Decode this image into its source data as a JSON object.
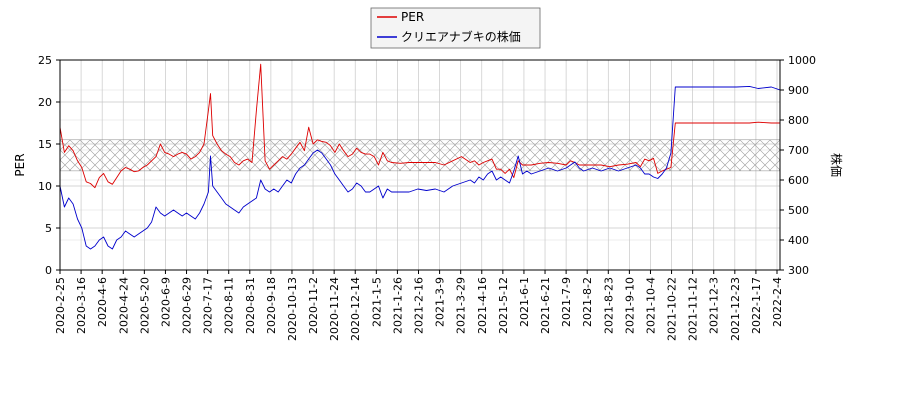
{
  "chart_data": {
    "type": "line",
    "legend": {
      "placement": "top-center",
      "entries": [
        "PER",
        "クリエアナブキの株価"
      ]
    },
    "grid": true,
    "band": {
      "description": "hatched PER range",
      "y_min": 11.8,
      "y_max": 15.5
    },
    "y_left": {
      "label": "PER",
      "lim": [
        0,
        25
      ],
      "ticks": [
        "0",
        "5",
        "10",
        "15",
        "20",
        "25"
      ]
    },
    "y_right": {
      "label": "株価",
      "lim": [
        300,
        1000
      ],
      "ticks": [
        "300",
        "400",
        "500",
        "600",
        "700",
        "800",
        "900",
        "1000"
      ]
    },
    "x_ticks": [
      "2020-2-25",
      "2020-3-16",
      "2020-4-6",
      "2020-4-24",
      "2020-5-20",
      "2020-6-9",
      "2020-6-29",
      "2020-7-17",
      "2020-8-11",
      "2020-8-31",
      "2020-9-18",
      "2020-10-13",
      "2020-11-2",
      "2020-11-24",
      "2020-12-14",
      "2021-1-5",
      "2021-1-26",
      "2021-2-16",
      "2021-3-9",
      "2021-3-29",
      "2021-4-16",
      "2021-5-12",
      "2021-6-1",
      "2021-6-21",
      "2021-7-9",
      "2021-8-2",
      "2021-8-23",
      "2021-9-10",
      "2021-10-4",
      "2021-10-22",
      "2021-11-12",
      "2021-12-3",
      "2021-12-23",
      "2022-1-17",
      "2022-2-4"
    ],
    "series": [
      {
        "name": "PER",
        "axis": "left",
        "color": "#dd0000",
        "points": [
          [
            0,
            17
          ],
          [
            1,
            14
          ],
          [
            2,
            14.8
          ],
          [
            3,
            14.2
          ],
          [
            4,
            13
          ],
          [
            5,
            12.2
          ],
          [
            6,
            10.5
          ],
          [
            7,
            10.3
          ],
          [
            8,
            9.8
          ],
          [
            9,
            11
          ],
          [
            10,
            11.5
          ],
          [
            11,
            10.5
          ],
          [
            12,
            10.2
          ],
          [
            13,
            11
          ],
          [
            14,
            11.8
          ],
          [
            15,
            12.2
          ],
          [
            16,
            12
          ],
          [
            17,
            11.7
          ],
          [
            18,
            11.8
          ],
          [
            19,
            12.2
          ],
          [
            20,
            12.5
          ],
          [
            22,
            13.5
          ],
          [
            23,
            15
          ],
          [
            24,
            14
          ],
          [
            25,
            13.8
          ],
          [
            26,
            13.5
          ],
          [
            27,
            13.8
          ],
          [
            28,
            14
          ],
          [
            29,
            13.8
          ],
          [
            30,
            13.2
          ],
          [
            31,
            13.5
          ],
          [
            32,
            14
          ],
          [
            33,
            15
          ],
          [
            34,
            19
          ],
          [
            34.5,
            21
          ],
          [
            35,
            16
          ],
          [
            36,
            15
          ],
          [
            37,
            14.2
          ],
          [
            38,
            13.8
          ],
          [
            39,
            13.5
          ],
          [
            40,
            12.8
          ],
          [
            41,
            12.5
          ],
          [
            42,
            13
          ],
          [
            43,
            13.2
          ],
          [
            44,
            12.8
          ],
          [
            45,
            19
          ],
          [
            46,
            24.5
          ],
          [
            47,
            13
          ],
          [
            48,
            12
          ],
          [
            49,
            12.5
          ],
          [
            50,
            13
          ],
          [
            51,
            13.5
          ],
          [
            52,
            13.2
          ],
          [
            53,
            13.8
          ],
          [
            54,
            14.5
          ],
          [
            55,
            15.2
          ],
          [
            56,
            14.2
          ],
          [
            57,
            17
          ],
          [
            58,
            15
          ],
          [
            59,
            15.5
          ],
          [
            60,
            15.3
          ],
          [
            61,
            15.2
          ],
          [
            62,
            14.8
          ],
          [
            63,
            14
          ],
          [
            64,
            15
          ],
          [
            65,
            14.2
          ],
          [
            66,
            13.5
          ],
          [
            67,
            13.8
          ],
          [
            68,
            14.5
          ],
          [
            69,
            14
          ],
          [
            70,
            13.8
          ],
          [
            71,
            13.8
          ],
          [
            72,
            13.5
          ],
          [
            73,
            12.5
          ],
          [
            74,
            14
          ],
          [
            75,
            13
          ],
          [
            76,
            12.8
          ],
          [
            78,
            12.7
          ],
          [
            80,
            12.8
          ],
          [
            82,
            12.8
          ],
          [
            84,
            12.8
          ],
          [
            86,
            12.8
          ],
          [
            88,
            12.5
          ],
          [
            90,
            13
          ],
          [
            92,
            13.5
          ],
          [
            94,
            12.8
          ],
          [
            95,
            13
          ],
          [
            96,
            12.5
          ],
          [
            97,
            12.8
          ],
          [
            98,
            13
          ],
          [
            99,
            13.2
          ],
          [
            100,
            12
          ],
          [
            101,
            12
          ],
          [
            102,
            11.5
          ],
          [
            103,
            12
          ],
          [
            104,
            11
          ],
          [
            105,
            13
          ],
          [
            106,
            12.5
          ],
          [
            107,
            12.5
          ],
          [
            108,
            12.5
          ],
          [
            110,
            12.7
          ],
          [
            112,
            12.8
          ],
          [
            114,
            12.7
          ],
          [
            116,
            12.5
          ],
          [
            117,
            13
          ],
          [
            118,
            12.8
          ],
          [
            119,
            12.5
          ],
          [
            120,
            12.5
          ],
          [
            122,
            12.5
          ],
          [
            124,
            12.5
          ],
          [
            126,
            12.3
          ],
          [
            128,
            12.5
          ],
          [
            130,
            12.6
          ],
          [
            132,
            12.8
          ],
          [
            133,
            12.3
          ],
          [
            134,
            13.2
          ],
          [
            135,
            13
          ],
          [
            136,
            13.3
          ],
          [
            137,
            11.5
          ],
          [
            138,
            11.8
          ],
          [
            139,
            12
          ],
          [
            140,
            12.2
          ],
          [
            141,
            17.5
          ],
          [
            142,
            17.5
          ],
          [
            150,
            17.5
          ],
          [
            158,
            17.5
          ],
          [
            160,
            17.6
          ],
          [
            163,
            17.5
          ],
          [
            165,
            17.5
          ]
        ]
      },
      {
        "name": "クリエアナブキの株価",
        "axis": "right",
        "color": "#0000cc",
        "points": [
          [
            0,
            580
          ],
          [
            1,
            510
          ],
          [
            2,
            540
          ],
          [
            3,
            520
          ],
          [
            4,
            470
          ],
          [
            5,
            440
          ],
          [
            6,
            380
          ],
          [
            7,
            370
          ],
          [
            8,
            380
          ],
          [
            9,
            400
          ],
          [
            10,
            410
          ],
          [
            11,
            380
          ],
          [
            12,
            370
          ],
          [
            13,
            400
          ],
          [
            14,
            410
          ],
          [
            15,
            430
          ],
          [
            16,
            420
          ],
          [
            17,
            410
          ],
          [
            18,
            420
          ],
          [
            19,
            430
          ],
          [
            20,
            440
          ],
          [
            21,
            460
          ],
          [
            22,
            510
          ],
          [
            23,
            490
          ],
          [
            24,
            480
          ],
          [
            25,
            490
          ],
          [
            26,
            500
          ],
          [
            27,
            490
          ],
          [
            28,
            480
          ],
          [
            29,
            490
          ],
          [
            30,
            480
          ],
          [
            31,
            470
          ],
          [
            32,
            490
          ],
          [
            33,
            520
          ],
          [
            34,
            560
          ],
          [
            34.5,
            680
          ],
          [
            35,
            580
          ],
          [
            36,
            560
          ],
          [
            37,
            540
          ],
          [
            38,
            520
          ],
          [
            39,
            510
          ],
          [
            40,
            500
          ],
          [
            41,
            490
          ],
          [
            42,
            510
          ],
          [
            43,
            520
          ],
          [
            44,
            530
          ],
          [
            45,
            540
          ],
          [
            46,
            600
          ],
          [
            47,
            570
          ],
          [
            48,
            560
          ],
          [
            49,
            570
          ],
          [
            50,
            560
          ],
          [
            51,
            580
          ],
          [
            52,
            600
          ],
          [
            53,
            590
          ],
          [
            54,
            620
          ],
          [
            55,
            640
          ],
          [
            56,
            650
          ],
          [
            57,
            670
          ],
          [
            58,
            690
          ],
          [
            59,
            700
          ],
          [
            60,
            690
          ],
          [
            61,
            670
          ],
          [
            62,
            650
          ],
          [
            63,
            620
          ],
          [
            64,
            600
          ],
          [
            65,
            580
          ],
          [
            66,
            560
          ],
          [
            67,
            570
          ],
          [
            68,
            590
          ],
          [
            69,
            580
          ],
          [
            70,
            560
          ],
          [
            71,
            560
          ],
          [
            72,
            570
          ],
          [
            73,
            580
          ],
          [
            74,
            540
          ],
          [
            75,
            570
          ],
          [
            76,
            560
          ],
          [
            78,
            560
          ],
          [
            80,
            560
          ],
          [
            82,
            570
          ],
          [
            84,
            565
          ],
          [
            86,
            570
          ],
          [
            88,
            560
          ],
          [
            90,
            580
          ],
          [
            92,
            590
          ],
          [
            94,
            600
          ],
          [
            95,
            590
          ],
          [
            96,
            610
          ],
          [
            97,
            600
          ],
          [
            98,
            620
          ],
          [
            99,
            630
          ],
          [
            100,
            600
          ],
          [
            101,
            610
          ],
          [
            102,
            600
          ],
          [
            103,
            590
          ],
          [
            104,
            630
          ],
          [
            105,
            680
          ],
          [
            106,
            620
          ],
          [
            107,
            630
          ],
          [
            108,
            620
          ],
          [
            110,
            630
          ],
          [
            112,
            640
          ],
          [
            114,
            630
          ],
          [
            116,
            640
          ],
          [
            117,
            650
          ],
          [
            118,
            660
          ],
          [
            119,
            640
          ],
          [
            120,
            630
          ],
          [
            122,
            640
          ],
          [
            124,
            630
          ],
          [
            126,
            640
          ],
          [
            128,
            630
          ],
          [
            130,
            640
          ],
          [
            132,
            650
          ],
          [
            133,
            640
          ],
          [
            134,
            620
          ],
          [
            135,
            620
          ],
          [
            136,
            610
          ],
          [
            137,
            605
          ],
          [
            138,
            620
          ],
          [
            139,
            640
          ],
          [
            140,
            690
          ],
          [
            141,
            910
          ],
          [
            142,
            910
          ],
          [
            150,
            910
          ],
          [
            155,
            910
          ],
          [
            158,
            912
          ],
          [
            160,
            905
          ],
          [
            163,
            910
          ],
          [
            165,
            900
          ]
        ]
      }
    ]
  }
}
